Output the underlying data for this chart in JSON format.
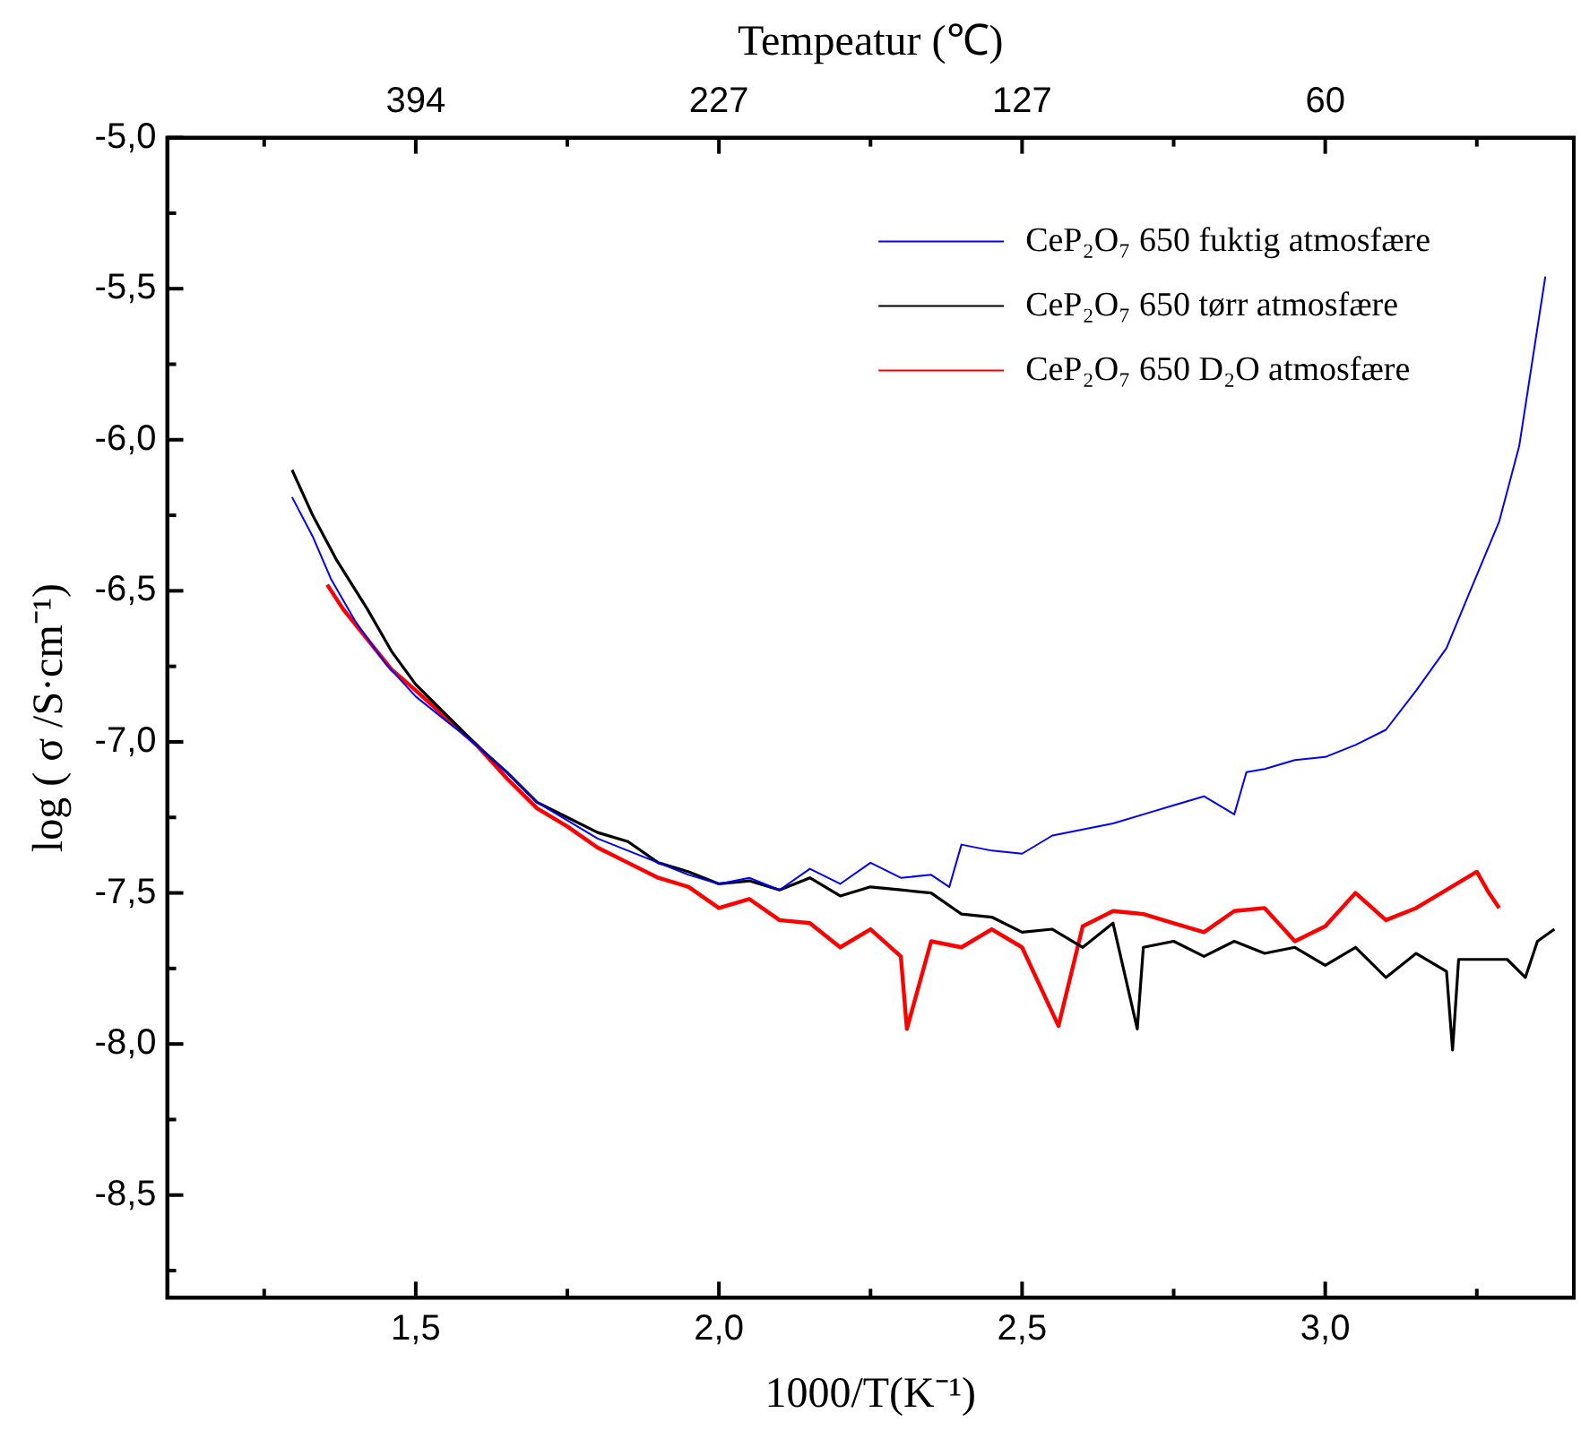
{
  "chart_data": {
    "type": "line",
    "xlabel": "1000/T(K⁻¹)",
    "ylabel": "log ( σ /S·cm⁻¹)",
    "x2label": "Tempeatur (℃)",
    "xlim": [
      1.09,
      3.41
    ],
    "ylim": [
      -8.84,
      -5.0
    ],
    "xticks": [
      {
        "value": 1.25,
        "label": null
      },
      {
        "value": 1.5,
        "label": "1,5"
      },
      {
        "value": 1.75,
        "label": null
      },
      {
        "value": 2.0,
        "label": "2,0"
      },
      {
        "value": 2.25,
        "label": null
      },
      {
        "value": 2.5,
        "label": "2,5"
      },
      {
        "value": 2.75,
        "label": null
      },
      {
        "value": 3.0,
        "label": "3,0"
      },
      {
        "value": 3.25,
        "label": null
      }
    ],
    "annotations": [
      "394",
      "227",
      "127",
      "60"
    ],
    "yticks": [
      {
        "value": -5.0,
        "label": "-5,0"
      },
      {
        "value": -5.25,
        "label": null
      },
      {
        "value": -5.5,
        "label": "-5,5"
      },
      {
        "value": -5.75,
        "label": null
      },
      {
        "value": -6.0,
        "label": "-6,0"
      },
      {
        "value": -6.25,
        "label": null
      },
      {
        "value": -6.5,
        "label": "-6,5"
      },
      {
        "value": -6.75,
        "label": null
      },
      {
        "value": -7.0,
        "label": "-7,0"
      },
      {
        "value": -7.25,
        "label": null
      },
      {
        "value": -7.5,
        "label": "-7,5"
      },
      {
        "value": -7.75,
        "label": null
      },
      {
        "value": -8.0,
        "label": "-8,0"
      },
      {
        "value": -8.25,
        "label": null
      },
      {
        "value": -8.5,
        "label": "-8,5"
      },
      {
        "value": -8.75,
        "label": null
      }
    ],
    "legend": "top right",
    "marker": "none",
    "line_style": "solid",
    "series": [
      {
        "name": "CeP₂O₇ 650 fuktig atmosfære",
        "color": "#0000ff",
        "x": [
          1.296,
          1.33,
          1.36,
          1.4,
          1.45,
          1.5,
          1.55,
          1.6,
          1.65,
          1.7,
          1.75,
          1.8,
          1.85,
          1.9,
          1.95,
          2.0,
          2.05,
          2.1,
          2.15,
          2.2,
          2.25,
          2.3,
          2.35,
          2.38,
          2.4,
          2.45,
          2.5,
          2.55,
          2.6,
          2.65,
          2.7,
          2.75,
          2.8,
          2.85,
          2.87,
          2.9,
          2.95,
          3.0,
          3.05,
          3.1,
          3.15,
          3.2,
          3.235,
          3.287,
          3.32,
          3.363
        ],
        "values": [
          -6.19,
          -6.32,
          -6.46,
          -6.6,
          -6.74,
          -6.85,
          -6.93,
          -7.01,
          -7.1,
          -7.2,
          -7.26,
          -7.32,
          -7.36,
          -7.4,
          -7.44,
          -7.47,
          -7.45,
          -7.49,
          -7.42,
          -7.47,
          -7.4,
          -7.45,
          -7.44,
          -7.48,
          -7.34,
          -7.36,
          -7.37,
          -7.31,
          -7.29,
          -7.27,
          -7.24,
          -7.21,
          -7.18,
          -7.24,
          -7.1,
          -7.09,
          -7.06,
          -7.05,
          -7.01,
          -6.96,
          -6.83,
          -6.69,
          -6.52,
          -6.27,
          -6.02,
          -5.46
        ]
      },
      {
        "name": "CeP₂O₇ 650 tørr atmosfære",
        "color": "#000000",
        "x": [
          1.296,
          1.33,
          1.37,
          1.42,
          1.46,
          1.5,
          1.55,
          1.6,
          1.65,
          1.7,
          1.75,
          1.8,
          1.85,
          1.9,
          1.95,
          2.0,
          2.05,
          2.1,
          2.15,
          2.2,
          2.25,
          2.3,
          2.35,
          2.4,
          2.45,
          2.5,
          2.55,
          2.6,
          2.65,
          2.69,
          2.7,
          2.75,
          2.8,
          2.85,
          2.9,
          2.95,
          3.0,
          3.05,
          3.1,
          3.15,
          3.2,
          3.21,
          3.22,
          3.27,
          3.3,
          3.33,
          3.35,
          3.378
        ],
        "values": [
          -6.1,
          -6.25,
          -6.4,
          -6.56,
          -6.7,
          -6.81,
          -6.91,
          -7.01,
          -7.1,
          -7.2,
          -7.25,
          -7.3,
          -7.33,
          -7.4,
          -7.43,
          -7.47,
          -7.46,
          -7.49,
          -7.45,
          -7.51,
          -7.48,
          -7.49,
          -7.5,
          -7.57,
          -7.58,
          -7.63,
          -7.62,
          -7.68,
          -7.6,
          -7.95,
          -7.68,
          -7.66,
          -7.71,
          -7.66,
          -7.7,
          -7.68,
          -7.74,
          -7.68,
          -7.78,
          -7.7,
          -7.76,
          -8.02,
          -7.72,
          -7.72,
          -7.72,
          -7.78,
          -7.66,
          -7.62
        ]
      },
      {
        "name": "CeP₂O₇ 650 D₂O atmosfære",
        "color": "#ff0000",
        "x": [
          1.354,
          1.38,
          1.42,
          1.46,
          1.5,
          1.55,
          1.6,
          1.65,
          1.7,
          1.75,
          1.8,
          1.85,
          1.9,
          1.95,
          2.0,
          2.05,
          2.1,
          2.15,
          2.2,
          2.25,
          2.3,
          2.31,
          2.35,
          2.4,
          2.45,
          2.5,
          2.56,
          2.6,
          2.65,
          2.7,
          2.75,
          2.8,
          2.85,
          2.9,
          2.95,
          3.0,
          3.05,
          3.1,
          3.15,
          3.2,
          3.25,
          3.27,
          3.287
        ],
        "values": [
          -6.48,
          -6.56,
          -6.66,
          -6.76,
          -6.83,
          -6.92,
          -7.01,
          -7.12,
          -7.22,
          -7.28,
          -7.35,
          -7.4,
          -7.45,
          -7.48,
          -7.55,
          -7.52,
          -7.59,
          -7.6,
          -7.68,
          -7.62,
          -7.71,
          -7.95,
          -7.66,
          -7.68,
          -7.62,
          -7.68,
          -7.94,
          -7.61,
          -7.56,
          -7.57,
          -7.6,
          -7.63,
          -7.56,
          -7.55,
          -7.66,
          -7.61,
          -7.5,
          -7.59,
          -7.55,
          -7.49,
          -7.43,
          -7.5,
          -7.55
        ]
      }
    ]
  }
}
